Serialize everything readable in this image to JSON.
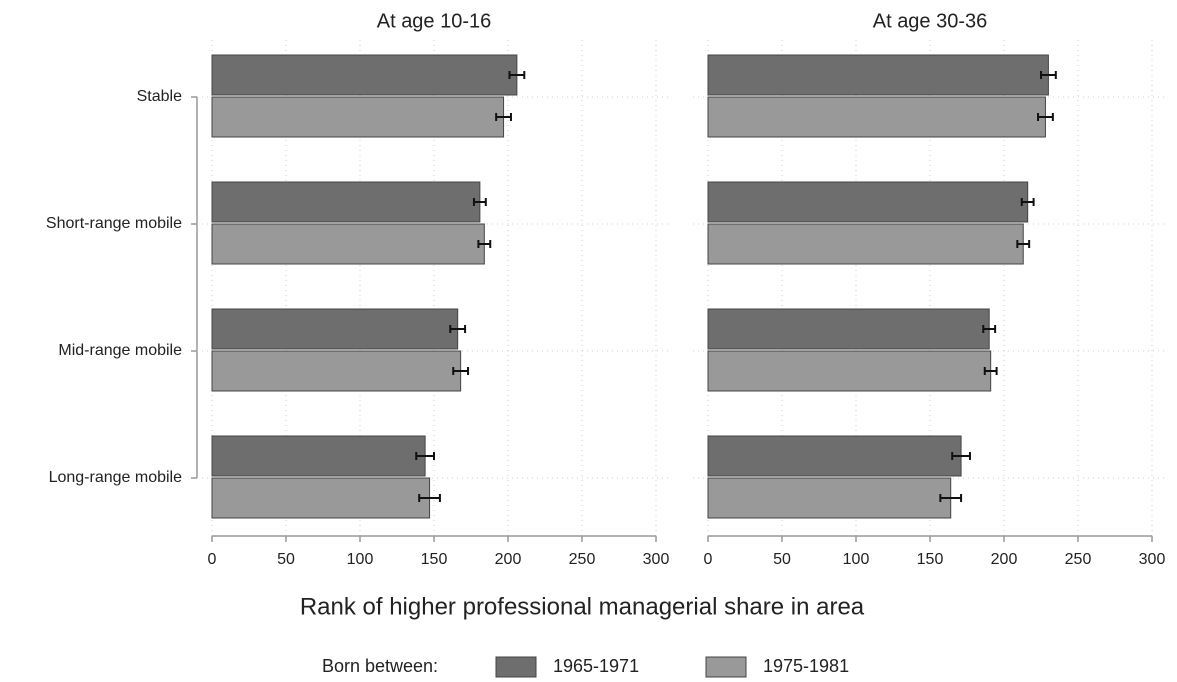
{
  "chart_data": {
    "type": "barh",
    "categories": [
      "Stable",
      "Short-range mobile",
      "Mid-range mobile",
      "Long-range mobile"
    ],
    "series": [
      {
        "name": "1965-1971",
        "color": "#6e6e6e"
      },
      {
        "name": "1975-1981",
        "color": "#999999"
      }
    ],
    "panels": [
      {
        "title": "At age 10-16",
        "values": [
          [
            206,
            181,
            166,
            144
          ],
          [
            197,
            184,
            168,
            147
          ]
        ],
        "errors": [
          [
            5,
            4,
            5,
            6
          ],
          [
            5,
            4,
            5,
            7
          ]
        ]
      },
      {
        "title": "At age 30-36",
        "values": [
          [
            230,
            216,
            190,
            171
          ],
          [
            228,
            213,
            191,
            164
          ]
        ],
        "errors": [
          [
            5,
            4,
            4,
            6
          ],
          [
            5,
            4,
            4,
            7
          ]
        ]
      }
    ],
    "xlim": [
      0,
      300
    ],
    "xticks": [
      0,
      50,
      100,
      150,
      200,
      250,
      300
    ],
    "grid": true,
    "x_label": "Rank of higher professional managerial share in area",
    "legend_title": "Born between:"
  }
}
